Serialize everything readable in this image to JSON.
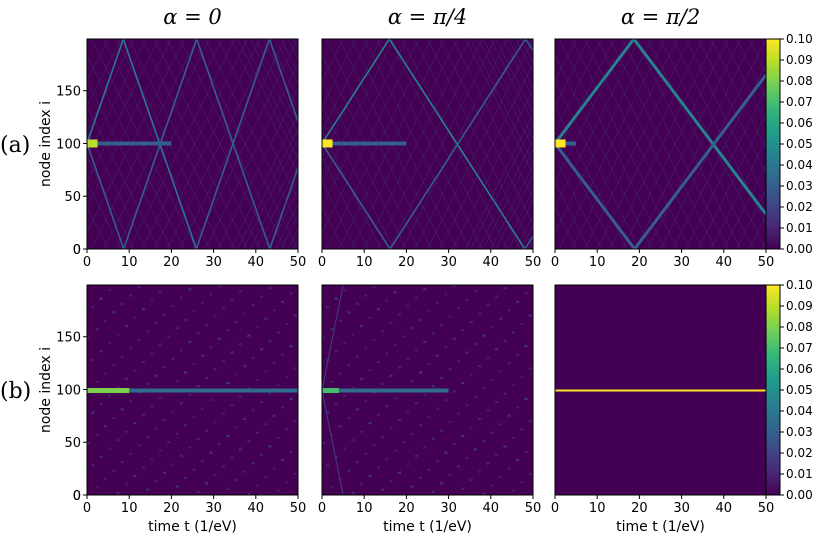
{
  "figure": {
    "column_titles": [
      "α = 0",
      "α = π/4",
      "α = π/2"
    ],
    "row_labels": [
      "(a)",
      "(b)"
    ],
    "ylabel": "node index i",
    "xlabel": "time t (1/eV)",
    "colormap": [
      "#440154",
      "#482878",
      "#3e4989",
      "#31688e",
      "#26828e",
      "#1f9e89",
      "#35b779",
      "#6ece58",
      "#b5de2b",
      "#fde725"
    ]
  },
  "chart_data": [
    {
      "type": "heatmap",
      "panel": "a-alpha0",
      "row": "(a)",
      "title": "α = 0",
      "xlabel": "",
      "ylabel": "node index i",
      "xlim": [
        0,
        50
      ],
      "ylim": [
        0,
        199
      ],
      "xticks": [
        0,
        10,
        20,
        30,
        40,
        50
      ],
      "yticks": [
        0,
        50,
        100,
        150
      ],
      "source_node": 100,
      "front_velocity_nodes_per_time": 11.5,
      "max_intensity": 0.09,
      "pattern": "ballistic"
    },
    {
      "type": "heatmap",
      "panel": "a-alpha-pi4",
      "row": "(a)",
      "title": "α = π/4",
      "xlabel": "",
      "ylabel": "",
      "xlim": [
        0,
        50
      ],
      "ylim": [
        0,
        199
      ],
      "xticks": [
        0,
        10,
        20,
        30,
        40,
        50
      ],
      "yticks": [],
      "source_node": 100,
      "front_velocity_nodes_per_time": 6.2,
      "max_intensity": 0.1,
      "pattern": "ballistic"
    },
    {
      "type": "heatmap",
      "panel": "a-alpha-pi2",
      "row": "(a)",
      "title": "α = π/2",
      "xlabel": "",
      "ylabel": "",
      "xlim": [
        0,
        50
      ],
      "ylim": [
        0,
        199
      ],
      "xticks": [
        0,
        10,
        20,
        30,
        40,
        50
      ],
      "yticks": [],
      "source_node": 100,
      "front_velocity_nodes_per_time": 5.3,
      "max_intensity": 0.1,
      "pattern": "ballistic-strong",
      "colorbar": {
        "ticks": [
          "0.10",
          "0.09",
          "0.08",
          "0.07",
          "0.06",
          "0.05",
          "0.04",
          "0.03",
          "0.02",
          "0.01",
          "0.00"
        ],
        "range": [
          0.0,
          0.1
        ]
      }
    },
    {
      "type": "heatmap",
      "panel": "b-alpha0",
      "row": "(b)",
      "title": "",
      "xlabel": "time t (1/eV)",
      "ylabel": "node index i",
      "xlim": [
        0,
        50
      ],
      "ylim": [
        0,
        199
      ],
      "xticks": [
        0,
        10,
        20,
        30,
        40,
        50
      ],
      "yticks": [
        0,
        50,
        100,
        150
      ],
      "source_node": 99,
      "max_intensity": 0.08,
      "pattern": "localized"
    },
    {
      "type": "heatmap",
      "panel": "b-alpha-pi4",
      "row": "(b)",
      "title": "",
      "xlabel": "time t (1/eV)",
      "ylabel": "",
      "xlim": [
        0,
        50
      ],
      "ylim": [
        0,
        199
      ],
      "xticks": [
        0,
        10,
        20,
        30,
        40,
        50
      ],
      "yticks": [],
      "source_node": 99,
      "max_intensity": 0.07,
      "pattern": "localized-diffuse"
    },
    {
      "type": "heatmap",
      "panel": "b-alpha-pi2",
      "row": "(b)",
      "title": "",
      "xlabel": "time t (1/eV)",
      "ylabel": "",
      "xlim": [
        0,
        50
      ],
      "ylim": [
        0,
        199
      ],
      "xticks": [
        0,
        10,
        20,
        30,
        40,
        50
      ],
      "yticks": [],
      "source_node": 99,
      "max_intensity": 0.1,
      "pattern": "frozen",
      "colorbar": {
        "ticks": [
          "0.10",
          "0.09",
          "0.08",
          "0.07",
          "0.06",
          "0.05",
          "0.04",
          "0.03",
          "0.02",
          "0.01",
          "0.00"
        ],
        "range": [
          0.0,
          0.1
        ]
      }
    }
  ]
}
